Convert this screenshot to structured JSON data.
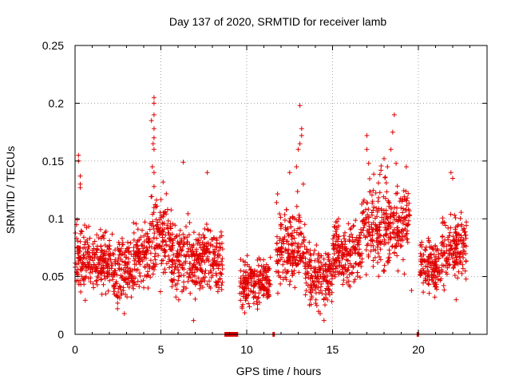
{
  "chart_data": {
    "type": "scatter",
    "title": "Day 137 of 2020, SRMTID for receiver lamb",
    "xlabel": "GPS time / hours",
    "ylabel": "SRMTID / TECUs",
    "xlim": [
      0,
      24
    ],
    "ylim": [
      0,
      0.25
    ],
    "xticks": [
      0,
      5,
      10,
      15,
      20
    ],
    "yticks": [
      0,
      0.05,
      0.1,
      0.15,
      0.2,
      0.25
    ],
    "xtick_labels": [
      "0",
      "5",
      "10",
      "15",
      "20"
    ],
    "ytick_labels": [
      "0",
      "0.05",
      "0.1",
      "0.15",
      "0.2",
      "0.25"
    ],
    "grid": true,
    "marker": "+",
    "color": "#e00000",
    "data_gaps_on_x_axis": [
      [
        8.7,
        9.5
      ],
      [
        11.5,
        11.6
      ],
      [
        19.9,
        20.0
      ]
    ],
    "segments": [
      {
        "x_start": 0.0,
        "x_end": 1.0,
        "y_center": 0.065,
        "spread": 0.02
      },
      {
        "x_start": 1.0,
        "x_end": 2.2,
        "y_center": 0.062,
        "spread": 0.018
      },
      {
        "x_start": 2.2,
        "x_end": 3.4,
        "y_center": 0.055,
        "spread": 0.02
      },
      {
        "x_start": 3.4,
        "x_end": 4.4,
        "y_center": 0.068,
        "spread": 0.022
      },
      {
        "x_start": 4.4,
        "x_end": 5.6,
        "y_center": 0.085,
        "spread": 0.025
      },
      {
        "x_start": 5.6,
        "x_end": 7.0,
        "y_center": 0.065,
        "spread": 0.022
      },
      {
        "x_start": 7.0,
        "x_end": 8.6,
        "y_center": 0.065,
        "spread": 0.022
      },
      {
        "x_start": 9.6,
        "x_end": 11.4,
        "y_center": 0.045,
        "spread": 0.015
      },
      {
        "x_start": 11.7,
        "x_end": 13.4,
        "y_center": 0.075,
        "spread": 0.025
      },
      {
        "x_start": 13.4,
        "x_end": 15.0,
        "y_center": 0.05,
        "spread": 0.02
      },
      {
        "x_start": 15.0,
        "x_end": 16.7,
        "y_center": 0.07,
        "spread": 0.022
      },
      {
        "x_start": 16.7,
        "x_end": 19.5,
        "y_center": 0.095,
        "spread": 0.028
      },
      {
        "x_start": 20.1,
        "x_end": 21.3,
        "y_center": 0.06,
        "spread": 0.018
      },
      {
        "x_start": 21.3,
        "x_end": 22.8,
        "y_center": 0.075,
        "spread": 0.022
      }
    ],
    "outliers": [
      {
        "x": 0.2,
        "y": 0.155
      },
      {
        "x": 0.2,
        "y": 0.15
      },
      {
        "x": 0.3,
        "y": 0.137
      },
      {
        "x": 0.3,
        "y": 0.13
      },
      {
        "x": 0.3,
        "y": 0.127
      },
      {
        "x": 4.6,
        "y": 0.205
      },
      {
        "x": 4.6,
        "y": 0.2
      },
      {
        "x": 4.6,
        "y": 0.19
      },
      {
        "x": 4.6,
        "y": 0.178
      },
      {
        "x": 4.6,
        "y": 0.17
      },
      {
        "x": 4.55,
        "y": 0.165
      },
      {
        "x": 4.6,
        "y": 0.16
      },
      {
        "x": 4.45,
        "y": 0.185
      },
      {
        "x": 4.5,
        "y": 0.145
      },
      {
        "x": 4.6,
        "y": 0.14
      },
      {
        "x": 4.6,
        "y": 0.128
      },
      {
        "x": 6.3,
        "y": 0.149
      },
      {
        "x": 7.7,
        "y": 0.14
      },
      {
        "x": 6.9,
        "y": 0.012
      },
      {
        "x": 13.1,
        "y": 0.198
      },
      {
        "x": 13.2,
        "y": 0.178
      },
      {
        "x": 13.2,
        "y": 0.172
      },
      {
        "x": 13.1,
        "y": 0.165
      },
      {
        "x": 13.0,
        "y": 0.16
      },
      {
        "x": 12.9,
        "y": 0.145
      },
      {
        "x": 12.5,
        "y": 0.14
      },
      {
        "x": 13.3,
        "y": 0.13
      },
      {
        "x": 17.0,
        "y": 0.172
      },
      {
        "x": 17.1,
        "y": 0.148
      },
      {
        "x": 17.0,
        "y": 0.16
      },
      {
        "x": 18.6,
        "y": 0.19
      },
      {
        "x": 18.5,
        "y": 0.175
      },
      {
        "x": 18.4,
        "y": 0.16
      },
      {
        "x": 18.0,
        "y": 0.152
      },
      {
        "x": 18.7,
        "y": 0.148
      },
      {
        "x": 18.2,
        "y": 0.145
      },
      {
        "x": 19.3,
        "y": 0.145
      },
      {
        "x": 21.9,
        "y": 0.14
      },
      {
        "x": 22.0,
        "y": 0.135
      },
      {
        "x": 14.5,
        "y": 0.012
      },
      {
        "x": 19.6,
        "y": 0.038
      },
      {
        "x": 22.2,
        "y": 0.03
      }
    ]
  }
}
